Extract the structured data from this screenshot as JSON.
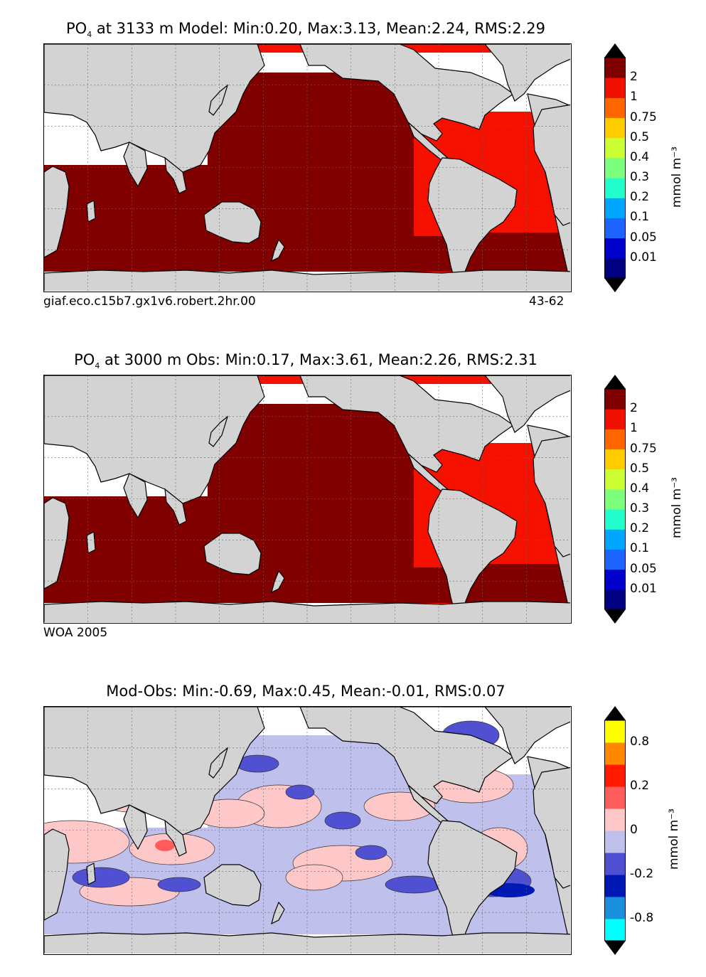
{
  "panels": [
    {
      "title_prefix": "PO",
      "title_sub": "4",
      "title_rest": " at 3133 m Model: Min:0.20, Max:3.13, Mean:2.24, RMS:2.29",
      "caption_left": "giaf.eco.c15b7.gx1v6.robert.2hr.00",
      "caption_right": "43-62",
      "units": "mmol m⁻³",
      "colorbar": {
        "ticks": [
          "2",
          "1",
          "0.75",
          "0.5",
          "0.4",
          "0.3",
          "0.2",
          "0.1",
          "0.05",
          "0.01"
        ],
        "colors": [
          "#000080",
          "#0000cd",
          "#1e64ff",
          "#00a6ff",
          "#22ffcc",
          "#7cff7c",
          "#ccff33",
          "#ffcc00",
          "#ff6600",
          "#f01000",
          "#800000"
        ],
        "over_color": "#000000",
        "under_color": "#000000"
      },
      "map": {
        "pacific": "#800000",
        "indian": "#800000",
        "atlantic": "#f51000",
        "southern": "#800000",
        "arctic": "#f51000"
      }
    },
    {
      "title_prefix": "PO",
      "title_sub": "4",
      "title_rest": " at 3000 m Obs: Min:0.17, Max:3.61, Mean:2.26, RMS:2.31",
      "caption_left": "WOA 2005",
      "caption_right": "",
      "units": "mmol m⁻³",
      "colorbar": {
        "ticks": [
          "2",
          "1",
          "0.75",
          "0.5",
          "0.4",
          "0.3",
          "0.2",
          "0.1",
          "0.05",
          "0.01"
        ],
        "colors": [
          "#000080",
          "#0000cd",
          "#1e64ff",
          "#00a6ff",
          "#22ffcc",
          "#7cff7c",
          "#ccff33",
          "#ffcc00",
          "#ff6600",
          "#f01000",
          "#800000"
        ],
        "over_color": "#000000",
        "under_color": "#000000"
      },
      "map": {
        "pacific": "#800000",
        "indian": "#800000",
        "atlantic": "#f51000",
        "southern": "#800000",
        "arctic": "#f51000"
      }
    },
    {
      "title_prefix": "Mod-Obs: Min:-0.69, Max:0.45, Mean:-0.01, RMS:0.07",
      "title_sub": "",
      "title_rest": "",
      "caption_left": "",
      "caption_right": "",
      "units": "mmol m⁻³",
      "colorbar": {
        "ticks": [
          "0.8",
          "0.2",
          "0",
          "-0.2",
          "-0.8"
        ],
        "colors": [
          "#00ffff",
          "#1a8fdc",
          "#0019b4",
          "#5050d2",
          "#c0c0ec",
          "#ffc8c8",
          "#ff5c5c",
          "#ff1a00",
          "#ff8800",
          "#ffff00"
        ],
        "over_color": "#000000",
        "under_color": "#000000"
      },
      "map": {
        "pacific": "#c0c0ec",
        "indian": "#c0c0ec",
        "atlantic": "#c0c0ec",
        "southern": "#c0c0ec",
        "arctic": "#ffffff"
      }
    }
  ]
}
